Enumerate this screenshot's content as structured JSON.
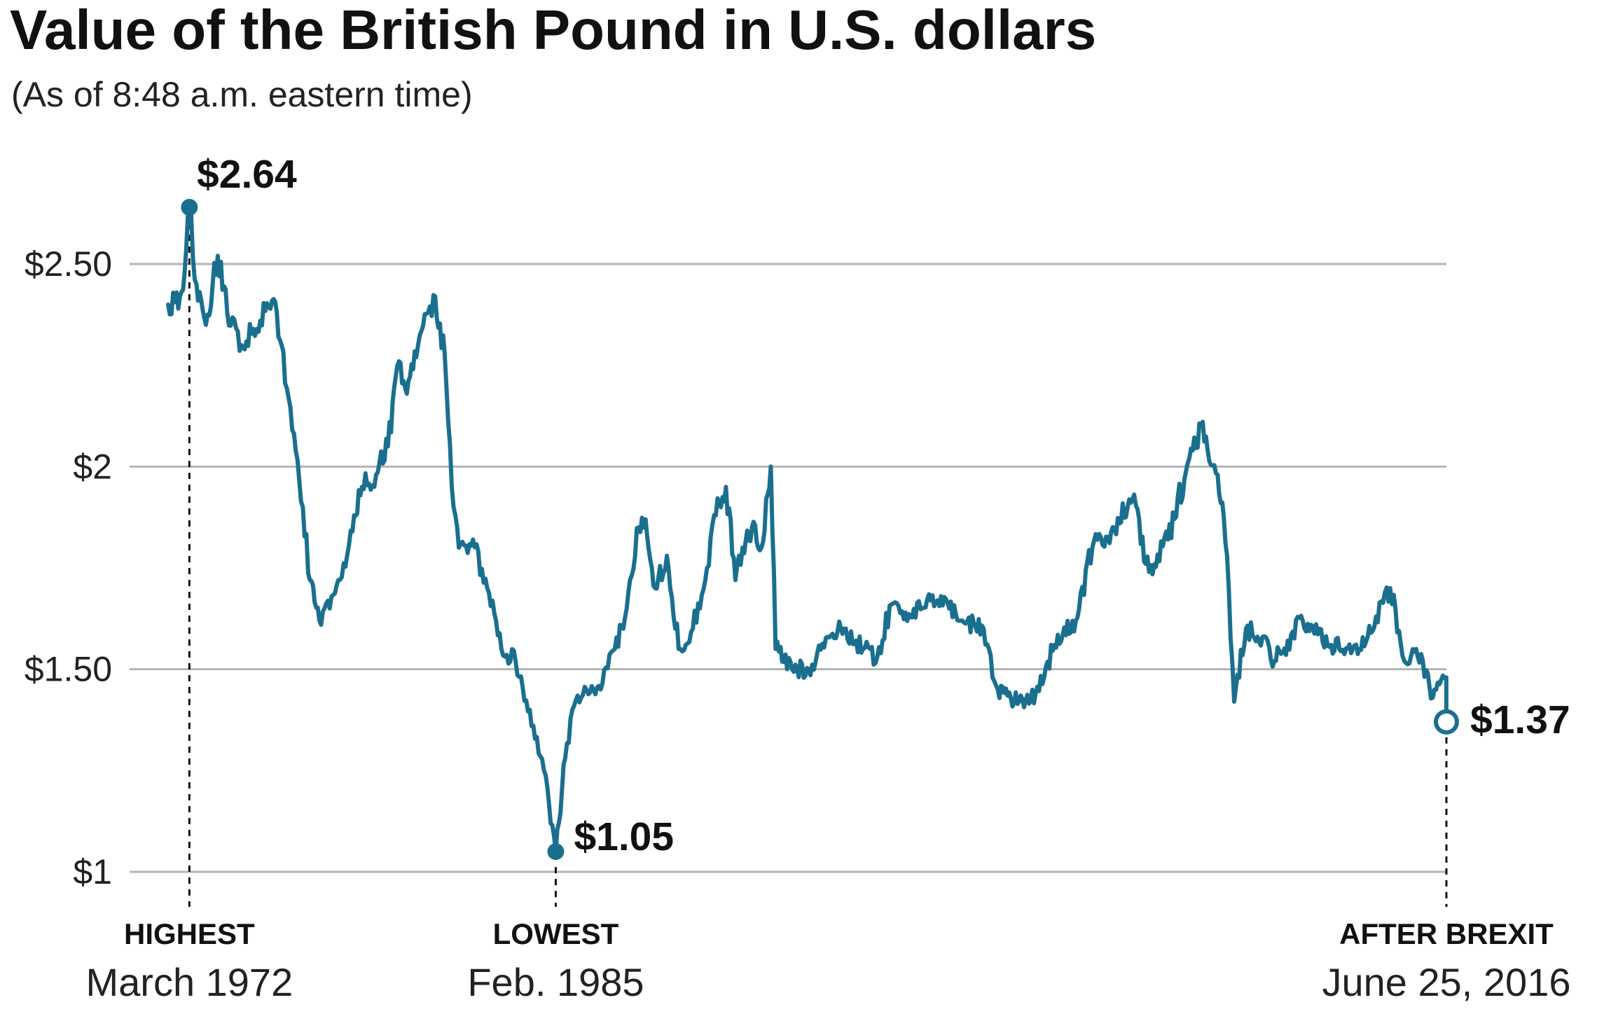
{
  "title": "Value of the British Pound in U.S. dollars",
  "subtitle": "(As of 8:48 a.m. eastern time)",
  "colors": {
    "line": "#1b6f8e",
    "grid": "#b4b4b4",
    "text": "#111111"
  },
  "chart_data": {
    "type": "line",
    "title": "Value of the British Pound in U.S. dollars",
    "subtitle": "(As of 8:48 a.m. eastern time)",
    "ylim": [
      1,
      2.7
    ],
    "y_ticks": [
      {
        "value": 1.0,
        "label": "$1"
      },
      {
        "value": 1.5,
        "label": "$1.50"
      },
      {
        "value": 2.0,
        "label": "$2"
      },
      {
        "value": 2.5,
        "label": "$2.50"
      }
    ],
    "grid": true,
    "x_range": [
      "1971-06",
      "2016-06-25"
    ],
    "series": [
      {
        "x": [
          "1971-06",
          "1971-11",
          "1972-01",
          "1972-03",
          "1972-06",
          "1972-10",
          "1973-03",
          "1973-07",
          "1974-01",
          "1974-06",
          "1974-09",
          "1975-02",
          "1975-06",
          "1975-12",
          "1976-03",
          "1976-06",
          "1976-10",
          "1977-06",
          "1977-12",
          "1978-04",
          "1978-10",
          "1979-03",
          "1979-07",
          "1979-11",
          "1980-03",
          "1980-08",
          "1980-11",
          "1981-03",
          "1981-06",
          "1981-09",
          "1982-03",
          "1982-09",
          "1983-03",
          "1983-09",
          "1984-03",
          "1984-09",
          "1985-02",
          "1985-06",
          "1985-09",
          "1986-03",
          "1986-09",
          "1987-03",
          "1987-08",
          "1988-01",
          "1988-04",
          "1988-08",
          "1989-01",
          "1989-06",
          "1989-12",
          "1990-06",
          "1990-09",
          "1991-02",
          "1991-06",
          "1991-09",
          "1992-01",
          "1992-05",
          "1992-09",
          "1992-11",
          "1993-06",
          "1994-01",
          "1994-09",
          "1995-04",
          "1995-12",
          "1996-06",
          "1996-12",
          "1997-06",
          "1998-01",
          "1998-09",
          "1999-06",
          "2000-03",
          "2000-09",
          "2001-06",
          "2002-01",
          "2002-09",
          "2003-06",
          "2004-01",
          "2004-09",
          "2005-06",
          "2006-01",
          "2006-09",
          "2007-06",
          "2007-11",
          "2008-06",
          "2008-10",
          "2009-01",
          "2009-06",
          "2010-01",
          "2010-06",
          "2011-06",
          "2012-06",
          "2013-06",
          "2014-01",
          "2014-07",
          "2015-01",
          "2015-06",
          "2016-01",
          "2016-06-24",
          "2016-06-25"
        ],
        "values": [
          2.4,
          2.42,
          2.48,
          2.64,
          2.45,
          2.35,
          2.52,
          2.38,
          2.3,
          2.34,
          2.36,
          2.41,
          2.3,
          2.04,
          1.9,
          1.72,
          1.62,
          1.72,
          1.84,
          1.95,
          1.98,
          2.05,
          2.25,
          2.18,
          2.27,
          2.38,
          2.42,
          2.28,
          1.95,
          1.8,
          1.82,
          1.7,
          1.55,
          1.52,
          1.4,
          1.25,
          1.05,
          1.28,
          1.4,
          1.45,
          1.45,
          1.55,
          1.65,
          1.85,
          1.87,
          1.7,
          1.78,
          1.55,
          1.6,
          1.75,
          1.88,
          1.95,
          1.72,
          1.8,
          1.85,
          1.8,
          2.0,
          1.55,
          1.5,
          1.5,
          1.58,
          1.6,
          1.55,
          1.53,
          1.66,
          1.64,
          1.65,
          1.68,
          1.62,
          1.6,
          1.45,
          1.42,
          1.44,
          1.56,
          1.62,
          1.8,
          1.84,
          1.92,
          1.74,
          1.82,
          2.02,
          2.1,
          1.98,
          1.78,
          1.42,
          1.6,
          1.58,
          1.52,
          1.62,
          1.56,
          1.55,
          1.63,
          1.7,
          1.52,
          1.55,
          1.43,
          1.48,
          1.37
        ]
      }
    ],
    "annotations": [
      {
        "kind": "high",
        "x": "1972-03",
        "value": 2.64,
        "label": "$2.64",
        "title": "HIGHEST",
        "date": "March 1972",
        "marker": "filled"
      },
      {
        "kind": "low",
        "x": "1985-02",
        "value": 1.05,
        "label": "$1.05",
        "title": "LOWEST",
        "date": "Feb. 1985",
        "marker": "filled"
      },
      {
        "kind": "brexit",
        "x": "2016-06-25",
        "value": 1.37,
        "label": "$1.37",
        "title": "AFTER BREXIT",
        "date": "June 25, 2016",
        "marker": "hollow"
      }
    ]
  }
}
